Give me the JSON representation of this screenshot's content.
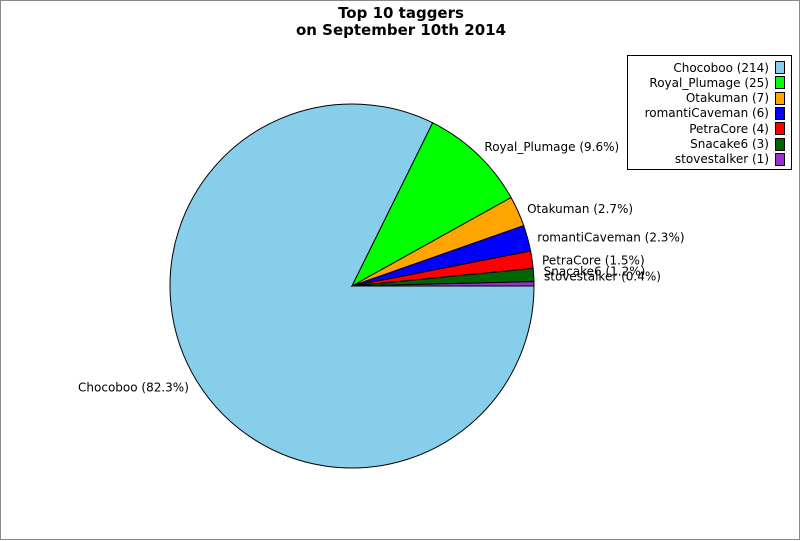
{
  "chart_data": {
    "type": "pie",
    "title_lines": [
      "Top 10 taggers",
      "on September 10th 2014"
    ],
    "legend_placement": "top-right",
    "slices": [
      {
        "name": "Chocoboo",
        "value": 214,
        "percent_label": "Chocoboo (82.3%)",
        "legend_label": "Chocoboo (214)",
        "color": "#87ceeb"
      },
      {
        "name": "Royal_Plumage",
        "value": 25,
        "percent_label": "Royal_Plumage (9.6%)",
        "legend_label": "Royal_Plumage (25)",
        "color": "#00ff00"
      },
      {
        "name": "Otakuman",
        "value": 7,
        "percent_label": "Otakuman (2.7%)",
        "legend_label": "Otakuman (7)",
        "color": "#ffa500"
      },
      {
        "name": "romantiCaveman",
        "value": 6,
        "percent_label": "romantiCaveman (2.3%)",
        "legend_label": "romantiCaveman (6)",
        "color": "#0000ff"
      },
      {
        "name": "PetraCore",
        "value": 4,
        "percent_label": "PetraCore (1.5%)",
        "legend_label": "PetraCore (4)",
        "color": "#ff0000"
      },
      {
        "name": "Snacake6",
        "value": 3,
        "percent_label": "Snacake6 (1.2%)",
        "legend_label": "Snacake6 (3)",
        "color": "#006400"
      },
      {
        "name": "stovestalker",
        "value": 1,
        "percent_label": "stovestalker (0.4%)",
        "legend_label": "stovestalker (1)",
        "color": "#9932cc"
      }
    ]
  }
}
